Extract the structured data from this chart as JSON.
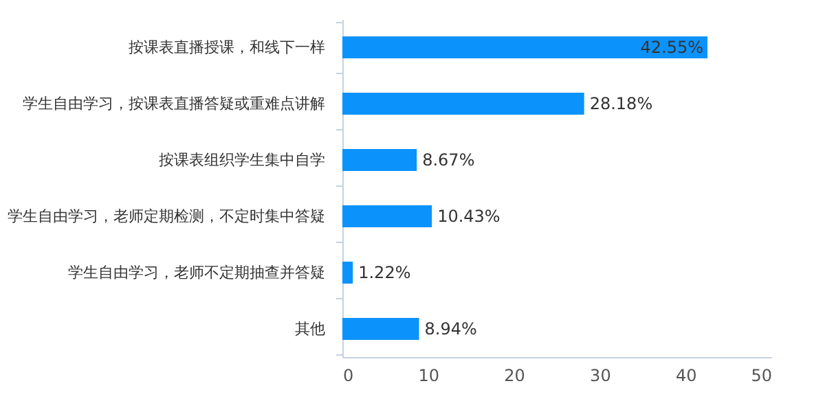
{
  "chart_data": {
    "type": "bar",
    "orientation": "horizontal",
    "categories": [
      "按课表直播授课，和线下一样",
      "学生自由学习，按课表直播答疑或重难点讲解",
      "按课表组织学生集中自学",
      "学生自由学习，老师定期检测，不定时集中答疑",
      "学生自由学习，老师不定期抽查并答疑",
      "其他"
    ],
    "values": [
      42.55,
      28.18,
      8.67,
      10.43,
      1.22,
      8.94
    ],
    "value_labels": [
      "42.55%",
      "28.18%",
      "8.67%",
      "10.43%",
      "1.22%",
      "8.94%"
    ],
    "color": "#0c93fb",
    "xlim": [
      0,
      50
    ],
    "xticks": [
      0,
      10,
      20,
      30,
      40,
      50
    ],
    "grid": false
  }
}
